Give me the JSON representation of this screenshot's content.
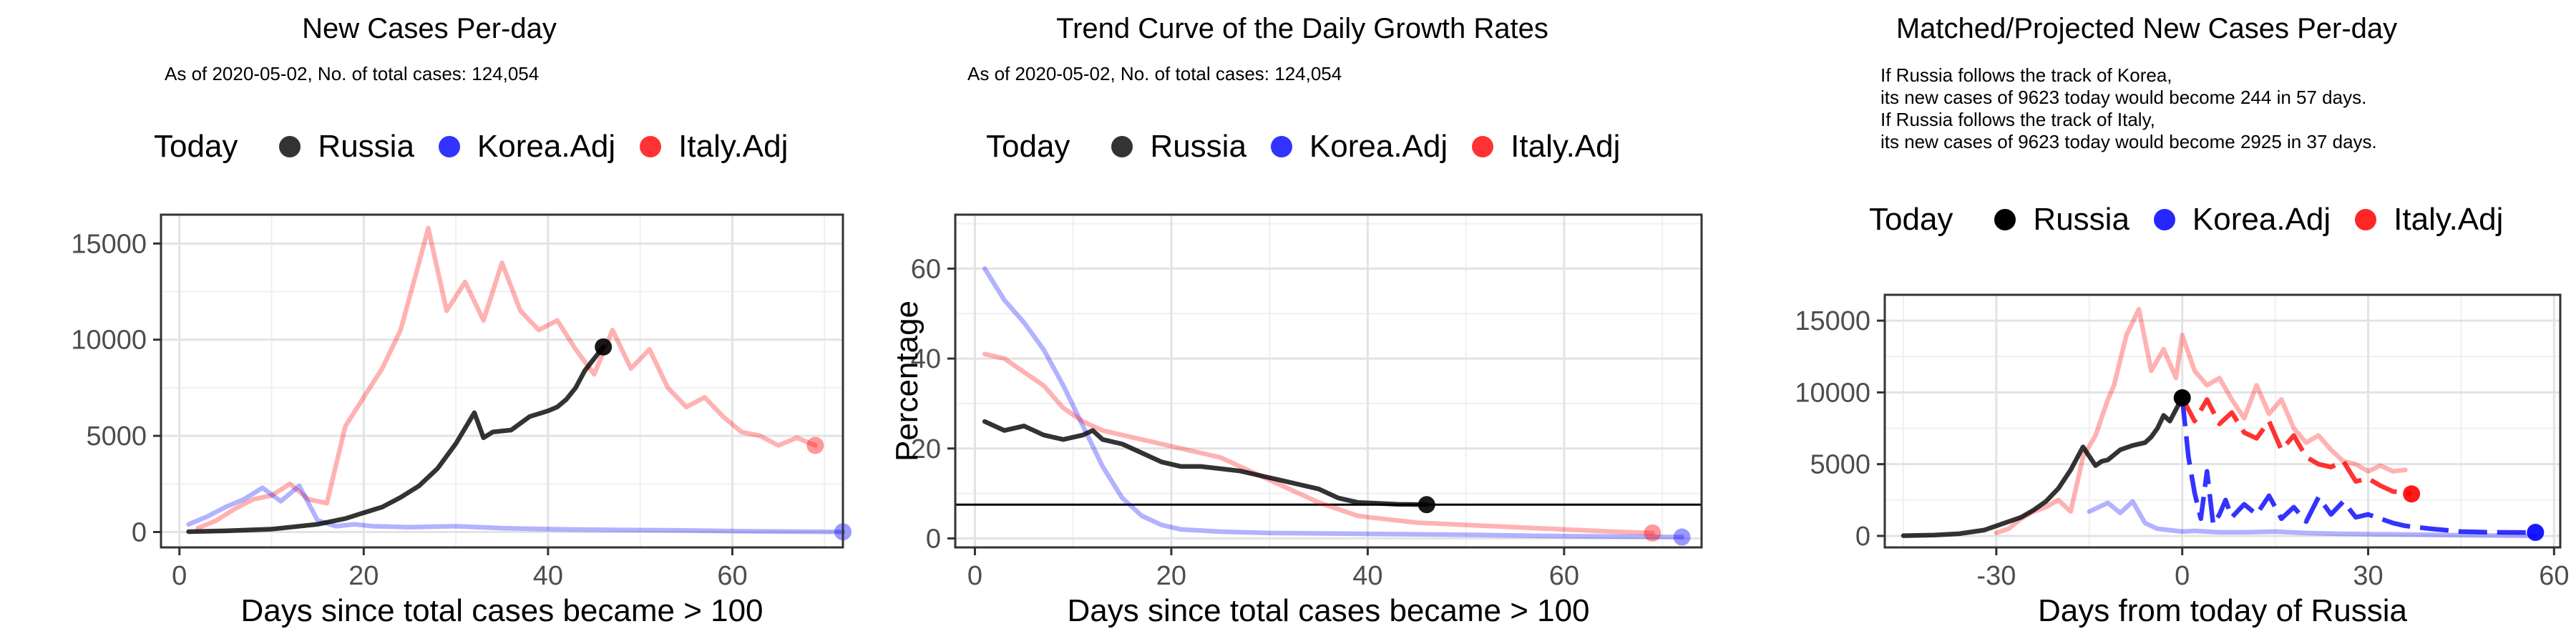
{
  "legend": {
    "title": "Today",
    "items": [
      {
        "label": "Russia",
        "color": "#000000"
      },
      {
        "label": "Korea.Adj",
        "color": "#0000ff"
      },
      {
        "label": "Italy.Adj",
        "color": "#ff0000"
      }
    ]
  },
  "chart_data": [
    {
      "type": "line",
      "title": "New Cases Per-day",
      "subtitle": "As of 2020-05-02, No. of total cases: 124,054",
      "xlabel": "Days since total cases became > 100",
      "ylabel": "",
      "xlim": [
        -2,
        72
      ],
      "ylim": [
        -800,
        16500
      ],
      "x_ticks": [
        0,
        20,
        40,
        60
      ],
      "y_ticks": [
        0,
        5000,
        10000,
        15000
      ],
      "grid": true,
      "legend_position": "top",
      "series": [
        {
          "name": "Italy.Adj",
          "color": "#ff0000",
          "opacity": 0.3,
          "x": [
            2,
            4,
            6,
            8,
            10,
            12,
            14,
            16,
            18,
            20,
            22,
            24,
            26,
            27,
            29,
            31,
            33,
            35,
            37,
            39,
            41,
            43,
            45,
            47,
            49,
            51,
            53,
            55,
            57,
            59,
            61,
            63,
            65,
            67,
            69
          ],
          "y": [
            200,
            600,
            1200,
            1700,
            1900,
            2500,
            1700,
            1500,
            5500,
            7000,
            8500,
            10500,
            14000,
            15800,
            11500,
            13000,
            11000,
            14000,
            11500,
            10500,
            11000,
            9500,
            8200,
            10500,
            8500,
            9500,
            7500,
            6500,
            7000,
            6000,
            5200,
            5000,
            4500,
            4900,
            4500
          ],
          "today": [
            69,
            4500
          ]
        },
        {
          "name": "Korea.Adj",
          "color": "#0000ff",
          "opacity": 0.3,
          "x": [
            1,
            3,
            5,
            7,
            9,
            11,
            13,
            15,
            17,
            19,
            21,
            25,
            30,
            35,
            40,
            45,
            50,
            55,
            60,
            65,
            70,
            72
          ],
          "y": [
            400,
            800,
            1300,
            1700,
            2300,
            1600,
            2400,
            600,
            300,
            400,
            300,
            250,
            300,
            200,
            150,
            120,
            100,
            80,
            50,
            30,
            10,
            5
          ],
          "today": [
            72,
            10
          ]
        },
        {
          "name": "Russia",
          "color": "#000000",
          "opacity": 0.8,
          "x": [
            1,
            5,
            10,
            15,
            18,
            20,
            22,
            24,
            26,
            28,
            30,
            32,
            33,
            34,
            36,
            38,
            40,
            41,
            42,
            43,
            44,
            46
          ],
          "y": [
            20,
            60,
            150,
            400,
            700,
            1000,
            1300,
            1800,
            2400,
            3300,
            4600,
            6200,
            4900,
            5200,
            5300,
            6000,
            6300,
            6500,
            6900,
            7500,
            8400,
            9623
          ],
          "today": [
            46,
            9623
          ]
        }
      ]
    },
    {
      "type": "line",
      "title": "Trend Curve of the Daily Growth Rates",
      "subtitle": "As of 2020-05-02, No. of total cases: 124,054",
      "xlabel": "Days since total cases became > 100",
      "ylabel": "Percentage",
      "xlim": [
        -2,
        74
      ],
      "ylim": [
        -2,
        72
      ],
      "x_ticks": [
        0,
        20,
        40,
        60
      ],
      "y_ticks": [
        0,
        20,
        40,
        60
      ],
      "hline": 7.5,
      "grid": true,
      "legend_position": "top",
      "series": [
        {
          "name": "Korea.Adj",
          "color": "#0000ff",
          "opacity": 0.3,
          "x": [
            1,
            3,
            5,
            7,
            9,
            11,
            13,
            15,
            17,
            19,
            21,
            25,
            30,
            40,
            50,
            60,
            72
          ],
          "y": [
            60,
            53,
            48,
            42,
            34,
            25,
            16,
            9,
            5,
            3,
            2,
            1.5,
            1.2,
            1,
            0.8,
            0.5,
            0.3
          ],
          "today": [
            72,
            0.3
          ]
        },
        {
          "name": "Italy.Adj",
          "color": "#ff0000",
          "opacity": 0.3,
          "x": [
            1,
            3,
            5,
            7,
            9,
            11,
            13,
            15,
            17,
            19,
            21,
            23,
            25,
            27,
            29,
            31,
            33,
            35,
            37,
            39,
            41,
            43,
            45,
            50,
            55,
            60,
            65,
            69
          ],
          "y": [
            41,
            40,
            37,
            34,
            29,
            26,
            24,
            23,
            22,
            21,
            20,
            19,
            18,
            16,
            14,
            12,
            10,
            8,
            6.5,
            5,
            4.5,
            4,
            3.5,
            3,
            2.5,
            2,
            1.5,
            1.2
          ],
          "today": [
            69,
            1.2
          ]
        },
        {
          "name": "Russia",
          "color": "#000000",
          "opacity": 0.8,
          "x": [
            1,
            3,
            5,
            7,
            9,
            11,
            12,
            13,
            15,
            17,
            19,
            21,
            23,
            25,
            27,
            29,
            31,
            33,
            35,
            37,
            39,
            41,
            43,
            46
          ],
          "y": [
            26,
            24,
            25,
            23,
            22,
            23,
            24,
            22,
            21,
            19,
            17,
            16,
            16,
            15.5,
            15,
            14,
            13,
            12,
            11,
            9,
            8,
            7.8,
            7.6,
            7.5
          ],
          "today": [
            46,
            7.5
          ]
        }
      ]
    },
    {
      "type": "line",
      "title": "Matched/Projected New Cases Per-day",
      "annotations": [
        "If Russia follows the track of Korea,",
        "its new cases of 9623 today would become 244 in 57 days.",
        "If Russia follows the track of Italy,",
        "its new cases of 9623 today would become 2925 in 37 days."
      ],
      "xlabel": "Days from today of Russia",
      "ylabel": "",
      "xlim": [
        -48,
        61
      ],
      "ylim": [
        -800,
        16800
      ],
      "x_ticks": [
        -30,
        0,
        30,
        60
      ],
      "y_ticks": [
        0,
        5000,
        10000,
        15000
      ],
      "grid": true,
      "legend_position": "top",
      "series": [
        {
          "name": "Italy.Adj (matched)",
          "color": "#ff0000",
          "opacity": 0.3,
          "x": [
            -30,
            -28,
            -26,
            -24,
            -22,
            -20,
            -18,
            -16,
            -14,
            -12,
            -11,
            -9,
            -7,
            -5,
            -3,
            -1,
            0,
            2,
            4,
            6,
            8,
            10,
            12,
            14,
            16,
            18,
            20,
            22,
            24,
            26,
            28,
            30,
            32,
            34,
            36
          ],
          "y": [
            200,
            500,
            1200,
            1700,
            2000,
            2500,
            1700,
            5500,
            7000,
            9500,
            10500,
            14000,
            15800,
            11500,
            13000,
            11000,
            14000,
            11500,
            10500,
            11000,
            9500,
            8200,
            10500,
            8500,
            9500,
            7500,
            6500,
            7000,
            6000,
            5200,
            5000,
            4500,
            4900,
            4500,
            4600
          ]
        },
        {
          "name": "Korea.Adj (matched)",
          "color": "#0000ff",
          "opacity": 0.3,
          "x": [
            -15,
            -12,
            -10,
            -8,
            -6,
            -4,
            -2,
            0,
            2,
            4,
            6,
            10,
            15,
            20,
            25,
            30,
            35,
            40,
            45,
            50,
            55,
            57
          ],
          "y": [
            1700,
            2300,
            1600,
            2400,
            900,
            500,
            400,
            300,
            350,
            300,
            250,
            250,
            300,
            200,
            150,
            120,
            100,
            80,
            50,
            30,
            10,
            5
          ]
        },
        {
          "name": "Russia",
          "color": "#000000",
          "opacity": 0.8,
          "x": [
            -45,
            -40,
            -36,
            -32,
            -30,
            -28,
            -26,
            -24,
            -22,
            -20,
            -18,
            -16,
            -14,
            -13,
            -12,
            -10,
            -8,
            -6,
            -5,
            -4,
            -3,
            -2,
            0
          ],
          "y": [
            20,
            60,
            150,
            400,
            700,
            1000,
            1300,
            1800,
            2400,
            3300,
            4600,
            6200,
            4900,
            5200,
            5300,
            6000,
            6300,
            6500,
            6900,
            7500,
            8400,
            8000,
            9623
          ]
        },
        {
          "name": "Korea.Adj (projected)",
          "color": "#0000ff",
          "opacity": 0.8,
          "dashed": true,
          "x": [
            0,
            1,
            2,
            3,
            4,
            5,
            6,
            7,
            8,
            10,
            12,
            14,
            16,
            18,
            20,
            22,
            24,
            26,
            28,
            30,
            32,
            34,
            36,
            40,
            45,
            50,
            55,
            57
          ],
          "y": [
            9623,
            5500,
            3000,
            1200,
            4500,
            800,
            1500,
            2500,
            1300,
            2200,
            1500,
            2800,
            1200,
            2000,
            1000,
            2700,
            1500,
            2400,
            1300,
            1500,
            1200,
            900,
            700,
            500,
            300,
            250,
            240,
            244
          ],
          "today": [
            57,
            244
          ]
        },
        {
          "name": "Italy.Adj (projected)",
          "color": "#ff0000",
          "opacity": 0.8,
          "dashed": true,
          "x": [
            0,
            2,
            4,
            6,
            8,
            10,
            12,
            14,
            16,
            18,
            20,
            22,
            24,
            26,
            28,
            30,
            32,
            34,
            36,
            37
          ],
          "y": [
            9623,
            8000,
            9500,
            7800,
            8600,
            7200,
            6800,
            8000,
            6000,
            7000,
            5500,
            5000,
            4800,
            5200,
            3800,
            4000,
            3500,
            3100,
            3000,
            2925
          ],
          "today": [
            37,
            2925
          ]
        }
      ]
    }
  ]
}
